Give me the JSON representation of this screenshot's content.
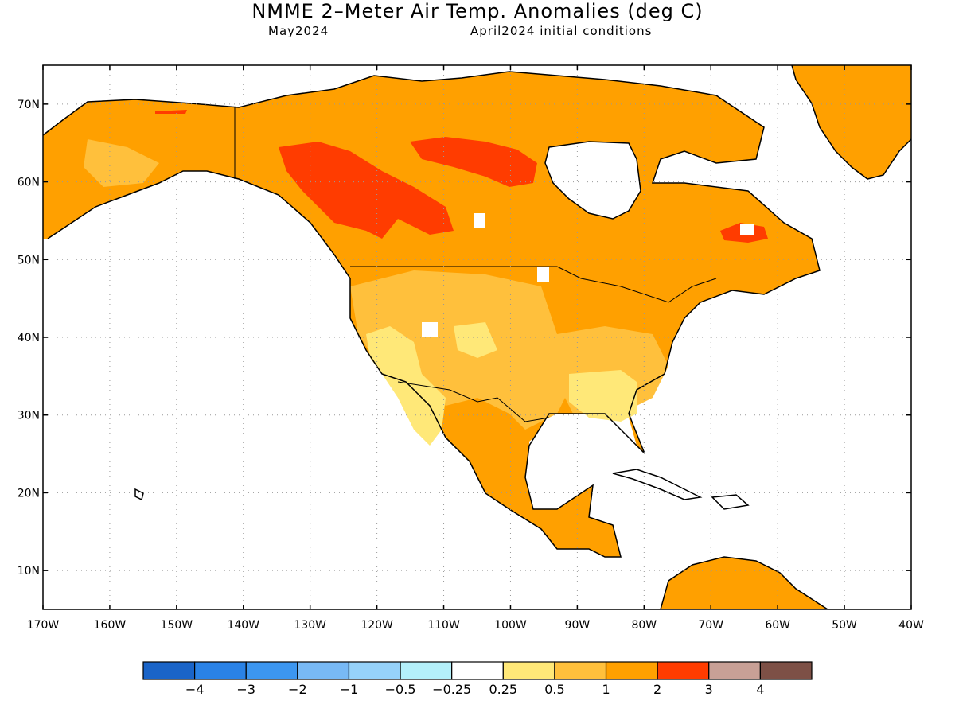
{
  "title": "NMME 2–Meter Air Temp. Anomalies (deg C)",
  "subtitle_left": "May2024",
  "subtitle_right": "April2024 initial conditions",
  "map": {
    "lon_range": [
      -170,
      -40
    ],
    "lat_range": [
      5,
      75
    ],
    "lat_ticks": [
      {
        "value": 70,
        "label": "70N"
      },
      {
        "value": 60,
        "label": "60N"
      },
      {
        "value": 50,
        "label": "50N"
      },
      {
        "value": 40,
        "label": "40N"
      },
      {
        "value": 30,
        "label": "30N"
      },
      {
        "value": 20,
        "label": "20N"
      },
      {
        "value": 10,
        "label": "10N"
      }
    ],
    "lon_ticks": [
      {
        "value": -170,
        "label": "170W"
      },
      {
        "value": -160,
        "label": "160W"
      },
      {
        "value": -150,
        "label": "150W"
      },
      {
        "value": -140,
        "label": "140W"
      },
      {
        "value": -130,
        "label": "130W"
      },
      {
        "value": -120,
        "label": "120W"
      },
      {
        "value": -110,
        "label": "110W"
      },
      {
        "value": -100,
        "label": "100W"
      },
      {
        "value": -90,
        "label": "90W"
      },
      {
        "value": -80,
        "label": "80W"
      },
      {
        "value": -70,
        "label": "70W"
      },
      {
        "value": -60,
        "label": "60W"
      },
      {
        "value": -50,
        "label": "50W"
      },
      {
        "value": -40,
        "label": "40W"
      }
    ]
  },
  "colorbar": {
    "colors": [
      "#1a64c8",
      "#2a82e6",
      "#3c96f0",
      "#78b9f5",
      "#96d2fa",
      "#b4f0fa",
      "#ffffff",
      "#ffe878",
      "#ffc03c",
      "#ffa000",
      "#ff3c00",
      "#c8a096",
      "#7d5046"
    ],
    "labels": [
      "−4",
      "−3",
      "−2",
      "−1",
      "−0.5",
      "−0.25",
      "0.25",
      "0.5",
      "1",
      "2",
      "3",
      "4"
    ]
  },
  "legend_colors": {
    "light_orange": "#ffc03c",
    "yellow": "#ffe878",
    "orange": "#ffa000",
    "red": "#ff3c00"
  }
}
